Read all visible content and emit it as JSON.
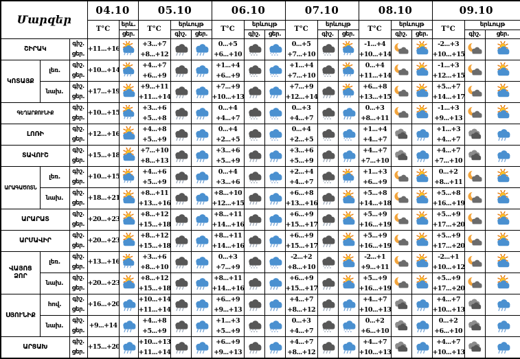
{
  "table": {
    "corner_label": "Մարզեր",
    "temp_header": "T°C",
    "phenomenon_short": "երև.",
    "phenomenon_full": "երևույթ",
    "night_label": "գիշ.",
    "day_label": "ցեր.",
    "dates": [
      {
        "date": "04.10",
        "day_only": true
      },
      {
        "date": "05.10",
        "day_only": false
      },
      {
        "date": "06.10",
        "day_only": false
      },
      {
        "date": "07.10",
        "day_only": false
      },
      {
        "date": "08.10",
        "day_only": false
      },
      {
        "date": "09.10",
        "day_only": false
      }
    ],
    "icon_types": {
      "sun-cloud": "sun behind cloud (partly cloudy)",
      "sun-rain": "sun behind cloud with rain showers",
      "blue-rain": "day cloud with rain",
      "blue-sleet": "day cloud with sleet / wet snow",
      "dark-rain": "dark night cloud with rain",
      "dark-sleet": "dark night cloud with sleet / wet snow",
      "moon-cloud": "moon with cloud",
      "clouds": "overcast clouds"
    },
    "colors": {
      "cloud_blue": "#4a90d0",
      "cloud_dark": "#575757",
      "cloud_gray": "#8c8c8c",
      "sun_fill": "#ffc425",
      "sun_stroke": "#e87d0d",
      "moon": "#f2a43c"
    },
    "rows": [
      {
        "region": "ՇԻՐԱԿ",
        "span": 1,
        "sub": null,
        "cells": [
          {
            "day_temp": "+11...+16",
            "day_icon": "sun-rain"
          },
          {
            "night_temp": "+3...+7",
            "day_temp": "+8...+12",
            "night_icon": "dark-rain",
            "day_icon": "blue-rain"
          },
          {
            "night_temp": "0...+5",
            "day_temp": "+6...+10",
            "night_icon": "dark-sleet",
            "day_icon": "blue-sleet"
          },
          {
            "night_temp": "0...+5",
            "day_temp": "+7...+10",
            "night_icon": "dark-sleet",
            "day_icon": "sun-rain"
          },
          {
            "night_temp": "-1...+4",
            "day_temp": "+10...+14",
            "night_icon": "moon-cloud",
            "day_icon": "sun-cloud"
          },
          {
            "night_temp": "-2...+3",
            "day_temp": "+10...+15",
            "night_icon": "moon-cloud",
            "day_icon": "sun-cloud"
          }
        ]
      },
      {
        "region": "ԿՈՏԱՅՔ",
        "span": 2,
        "sub": "լեռ.",
        "cells": [
          {
            "day_temp": "+10...+14",
            "day_icon": "sun-rain"
          },
          {
            "night_temp": "+4...+7",
            "day_temp": "+6...+9",
            "night_icon": "dark-rain",
            "day_icon": "blue-rain"
          },
          {
            "night_temp": "+1...+4",
            "day_temp": "+6...+9",
            "night_icon": "dark-sleet",
            "day_icon": "blue-sleet"
          },
          {
            "night_temp": "+1...+4",
            "day_temp": "+7...+10",
            "night_icon": "dark-sleet",
            "day_icon": "sun-rain"
          },
          {
            "night_temp": "0...+4",
            "day_temp": "+11...+14",
            "night_icon": "moon-cloud",
            "day_icon": "sun-cloud"
          },
          {
            "night_temp": "-1...+3",
            "day_temp": "+12...+15",
            "night_icon": "moon-cloud",
            "day_icon": "sun-cloud"
          }
        ]
      },
      {
        "region": null,
        "span": 0,
        "sub": "նախ.",
        "cells": [
          {
            "day_temp": "+17...+19",
            "day_icon": "sun-cloud"
          },
          {
            "night_temp": "+9...+11",
            "day_temp": "+11...+14",
            "night_icon": "dark-rain",
            "day_icon": "blue-rain"
          },
          {
            "night_temp": "+7...+9",
            "day_temp": "+10...+13",
            "night_icon": "dark-rain",
            "day_icon": "blue-rain"
          },
          {
            "night_temp": "+7...+9",
            "day_temp": "+12...+14",
            "night_icon": "dark-rain",
            "day_icon": "sun-rain"
          },
          {
            "night_temp": "+6...+8",
            "day_temp": "+13...+15",
            "night_icon": "moon-cloud",
            "day_icon": "sun-cloud"
          },
          {
            "night_temp": "+5...+7",
            "day_temp": "+14...+17",
            "night_icon": "moon-cloud",
            "day_icon": "sun-cloud"
          }
        ]
      },
      {
        "region": "ԳԵՂԱՐՔՈՒՆԻՔ",
        "span": 1,
        "sub": null,
        "cells": [
          {
            "day_temp": "+10...+15",
            "day_icon": "sun-rain"
          },
          {
            "night_temp": "+3...+6",
            "day_temp": "+5...+8",
            "night_icon": "dark-rain",
            "day_icon": "blue-rain"
          },
          {
            "night_temp": "0...+4",
            "day_temp": "+4...+7",
            "night_icon": "dark-sleet",
            "day_icon": "blue-sleet"
          },
          {
            "night_temp": "0...+3",
            "day_temp": "+4...+7",
            "night_icon": "dark-sleet",
            "day_icon": "blue-rain"
          },
          {
            "night_temp": "0...+3",
            "day_temp": "+8...+11",
            "night_icon": "moon-cloud",
            "day_icon": "sun-cloud"
          },
          {
            "night_temp": "-1...+3",
            "day_temp": "+9...+13",
            "night_icon": "moon-cloud",
            "day_icon": "sun-cloud"
          }
        ]
      },
      {
        "region": "ԼՈՌԻ",
        "span": 1,
        "sub": null,
        "cells": [
          {
            "day_temp": "+12...+16",
            "day_icon": "sun-cloud"
          },
          {
            "night_temp": "+4...+8",
            "day_temp": "+5...+9",
            "night_icon": "dark-rain",
            "day_icon": "blue-rain"
          },
          {
            "night_temp": "0...+4",
            "day_temp": "+2...+5",
            "night_icon": "dark-sleet",
            "day_icon": "blue-sleet"
          },
          {
            "night_temp": "0...+4",
            "day_temp": "+2...+5",
            "night_icon": "dark-sleet",
            "day_icon": "blue-sleet"
          },
          {
            "night_temp": "+1...+4",
            "day_temp": "+4...+7",
            "night_icon": "clouds",
            "day_icon": "blue-rain"
          },
          {
            "night_temp": "+1...+3",
            "day_temp": "+4...+7",
            "night_icon": "clouds",
            "day_icon": "blue-rain"
          }
        ]
      },
      {
        "region": "ՏԱՎՈՒՇ",
        "span": 1,
        "sub": null,
        "cells": [
          {
            "day_temp": "+15...+18",
            "day_icon": "sun-cloud"
          },
          {
            "night_temp": "+7...+10",
            "day_temp": "+8...+13",
            "night_icon": "dark-rain",
            "day_icon": "blue-rain"
          },
          {
            "night_temp": "+3...+6",
            "day_temp": "+5...+9",
            "night_icon": "dark-rain",
            "day_icon": "blue-rain"
          },
          {
            "night_temp": "+3...+6",
            "day_temp": "+5...+9",
            "night_icon": "dark-rain",
            "day_icon": "blue-rain"
          },
          {
            "night_temp": "+4...+7",
            "day_temp": "+7...+10",
            "night_icon": "clouds",
            "day_icon": "blue-rain"
          },
          {
            "night_temp": "+4...+7",
            "day_temp": "+7...+10",
            "night_icon": "clouds",
            "day_icon": "blue-rain"
          }
        ]
      },
      {
        "region": "ԱՐԱԳԱԾՈՏՆ",
        "span": 2,
        "sub": "լեռ.",
        "cells": [
          {
            "day_temp": "+10...+15",
            "day_icon": "sun-rain"
          },
          {
            "night_temp": "+4...+6",
            "day_temp": "+5...+9",
            "night_icon": "dark-rain",
            "day_icon": "blue-rain"
          },
          {
            "night_temp": "0...+4",
            "day_temp": "+3...+6",
            "night_icon": "dark-sleet",
            "day_icon": "blue-sleet"
          },
          {
            "night_temp": "+2...+4",
            "day_temp": "+4...+7",
            "night_icon": "dark-sleet",
            "day_icon": "sun-rain"
          },
          {
            "night_temp": "+1...+3",
            "day_temp": "+6...+9",
            "night_icon": "moon-cloud",
            "day_icon": "sun-cloud"
          },
          {
            "night_temp": "0...+2",
            "day_temp": "+8...+11",
            "night_icon": "moon-cloud",
            "day_icon": "sun-cloud"
          }
        ]
      },
      {
        "region": null,
        "span": 0,
        "sub": "նախ.",
        "cells": [
          {
            "day_temp": "+18...+21",
            "day_icon": "sun-cloud"
          },
          {
            "night_temp": "+8...+11",
            "day_temp": "+13...+16",
            "night_icon": "dark-rain",
            "day_icon": "blue-rain"
          },
          {
            "night_temp": "+8...+10",
            "day_temp": "+12...+15",
            "night_icon": "dark-rain",
            "day_icon": "blue-rain"
          },
          {
            "night_temp": "+6...+8",
            "day_temp": "+13...+16",
            "night_icon": "dark-rain",
            "day_icon": "sun-cloud"
          },
          {
            "night_temp": "+5...+8",
            "day_temp": "+14...+18",
            "night_icon": "moon-cloud",
            "day_icon": "sun-cloud"
          },
          {
            "night_temp": "+5...+8",
            "day_temp": "+16...+19",
            "night_icon": "moon-cloud",
            "day_icon": "sun-cloud"
          }
        ]
      },
      {
        "region": "ԱՐԱՐԱՏ",
        "span": 1,
        "sub": null,
        "cells": [
          {
            "day_temp": "+20...+23",
            "day_icon": "sun-cloud"
          },
          {
            "night_temp": "+8...+12",
            "day_temp": "+15...+18",
            "night_icon": "dark-rain",
            "day_icon": "blue-rain"
          },
          {
            "night_temp": "+8...+11",
            "day_temp": "+14...+16",
            "night_icon": "dark-rain",
            "day_icon": "blue-rain"
          },
          {
            "night_temp": "+6...+9",
            "day_temp": "+15...+17",
            "night_icon": "dark-rain",
            "day_icon": "sun-cloud"
          },
          {
            "night_temp": "+5...+9",
            "day_temp": "+16...+19",
            "night_icon": "moon-cloud",
            "day_icon": "sun-cloud"
          },
          {
            "night_temp": "+5...+9",
            "day_temp": "+17...+20",
            "night_icon": "moon-cloud",
            "day_icon": "sun-cloud"
          }
        ]
      },
      {
        "region": "ԱՐՄԱՎԻՐ",
        "span": 1,
        "sub": null,
        "cells": [
          {
            "day_temp": "+20...+23",
            "day_icon": "sun-cloud"
          },
          {
            "night_temp": "+8...+12",
            "day_temp": "+15...+18",
            "night_icon": "dark-rain",
            "day_icon": "blue-rain"
          },
          {
            "night_temp": "+8...+11",
            "day_temp": "+14...+16",
            "night_icon": "dark-rain",
            "day_icon": "blue-rain"
          },
          {
            "night_temp": "+6...+9",
            "day_temp": "+15...+17",
            "night_icon": "dark-rain",
            "day_icon": "sun-cloud"
          },
          {
            "night_temp": "+5...+9",
            "day_temp": "+16...+19",
            "night_icon": "moon-cloud",
            "day_icon": "sun-cloud"
          },
          {
            "night_temp": "+5...+9",
            "day_temp": "+17...+20",
            "night_icon": "moon-cloud",
            "day_icon": "sun-cloud"
          }
        ]
      },
      {
        "region": "ՎԱՅՈՑ ՁՈՐ",
        "span": 2,
        "sub": "լեռ.",
        "cells": [
          {
            "day_temp": "+13...+16",
            "day_icon": "sun-rain"
          },
          {
            "night_temp": "+3...+6",
            "day_temp": "+8...+10",
            "night_icon": "dark-rain",
            "day_icon": "blue-rain"
          },
          {
            "night_temp": "0...+3",
            "day_temp": "+7...+9",
            "night_icon": "dark-sleet",
            "day_icon": "blue-sleet"
          },
          {
            "night_temp": "-2...+2",
            "day_temp": "+8...+10",
            "night_icon": "dark-sleet",
            "day_icon": "sun-cloud"
          },
          {
            "night_temp": "-2...+1",
            "day_temp": "+9...+11",
            "night_icon": "moon-cloud",
            "day_icon": "sun-cloud"
          },
          {
            "night_temp": "-2...+1",
            "day_temp": "+10...+12",
            "night_icon": "moon-cloud",
            "day_icon": "sun-cloud"
          }
        ]
      },
      {
        "region": null,
        "span": 0,
        "sub": "նախ.",
        "cells": [
          {
            "day_temp": "+20...+23",
            "day_icon": "sun-cloud"
          },
          {
            "night_temp": "+8...+12",
            "day_temp": "+15...+18",
            "night_icon": "dark-rain",
            "day_icon": "blue-rain"
          },
          {
            "night_temp": "+8...+11",
            "day_temp": "+14...+16",
            "night_icon": "dark-rain",
            "day_icon": "blue-rain"
          },
          {
            "night_temp": "+6...+9",
            "day_temp": "+15...+17",
            "night_icon": "dark-rain",
            "day_icon": "sun-cloud"
          },
          {
            "night_temp": "+5...+9",
            "day_temp": "+16...+19",
            "night_icon": "moon-cloud",
            "day_icon": "sun-cloud"
          },
          {
            "night_temp": "+5...+9",
            "day_temp": "+17...+20",
            "night_icon": "moon-cloud",
            "day_icon": "sun-cloud"
          }
        ]
      },
      {
        "region": "ՍՅՈՒՆԻՔ",
        "span": 2,
        "sub": "հով.",
        "cells": [
          {
            "day_temp": "+16...+20",
            "day_icon": "blue-rain"
          },
          {
            "night_temp": "+10...+14",
            "day_temp": "+11...+14",
            "night_icon": "dark-rain",
            "day_icon": "blue-rain"
          },
          {
            "night_temp": "+6...+9",
            "day_temp": "+9...+13",
            "night_icon": "dark-rain",
            "day_icon": "blue-rain"
          },
          {
            "night_temp": "+4...+7",
            "day_temp": "+8...+12",
            "night_icon": "dark-rain",
            "day_icon": "blue-rain"
          },
          {
            "night_temp": "+4...+7",
            "day_temp": "+10...+13",
            "night_icon": "clouds",
            "day_icon": "blue-rain"
          },
          {
            "night_temp": "+4...+7",
            "day_temp": "+10...+13",
            "night_icon": "clouds",
            "day_icon": "blue-rain"
          }
        ]
      },
      {
        "region": null,
        "span": 0,
        "sub": "նախ.",
        "cells": [
          {
            "day_temp": "+9...+14",
            "day_icon": "blue-rain"
          },
          {
            "night_temp": "+4...+8",
            "day_temp": "+5...+9",
            "night_icon": "dark-rain",
            "day_icon": "blue-rain"
          },
          {
            "night_temp": "+1...+3",
            "day_temp": "+5...+9",
            "night_icon": "dark-sleet",
            "day_icon": "blue-sleet"
          },
          {
            "night_temp": "0...+3",
            "day_temp": "+4...+7",
            "night_icon": "dark-sleet",
            "day_icon": "blue-sleet"
          },
          {
            "night_temp": "0...+2",
            "day_temp": "+6...+10",
            "night_icon": "clouds",
            "day_icon": "blue-rain"
          },
          {
            "night_temp": "0...+2",
            "day_temp": "+6...+10",
            "night_icon": "clouds",
            "day_icon": "blue-rain"
          }
        ]
      },
      {
        "region": "ԱՐՑԱԽ",
        "span": 1,
        "sub": null,
        "cells": [
          {
            "day_temp": "+15...+20",
            "day_icon": "blue-rain"
          },
          {
            "night_temp": "+10...+13",
            "day_temp": "+11...+14",
            "night_icon": "dark-rain",
            "day_icon": "blue-rain"
          },
          {
            "night_temp": "+6...+9",
            "day_temp": "+9...+13",
            "night_icon": "dark-rain",
            "day_icon": "blue-rain"
          },
          {
            "night_temp": "+4...+7",
            "day_temp": "+8...+12",
            "night_icon": "dark-rain",
            "day_icon": "blue-rain"
          },
          {
            "night_temp": "+4...+7",
            "day_temp": "+10...+13",
            "night_icon": "clouds",
            "day_icon": "blue-rain"
          },
          {
            "night_temp": "+4...+7",
            "day_temp": "+10...+13",
            "night_icon": "clouds",
            "day_icon": "blue-rain"
          }
        ]
      }
    ]
  }
}
